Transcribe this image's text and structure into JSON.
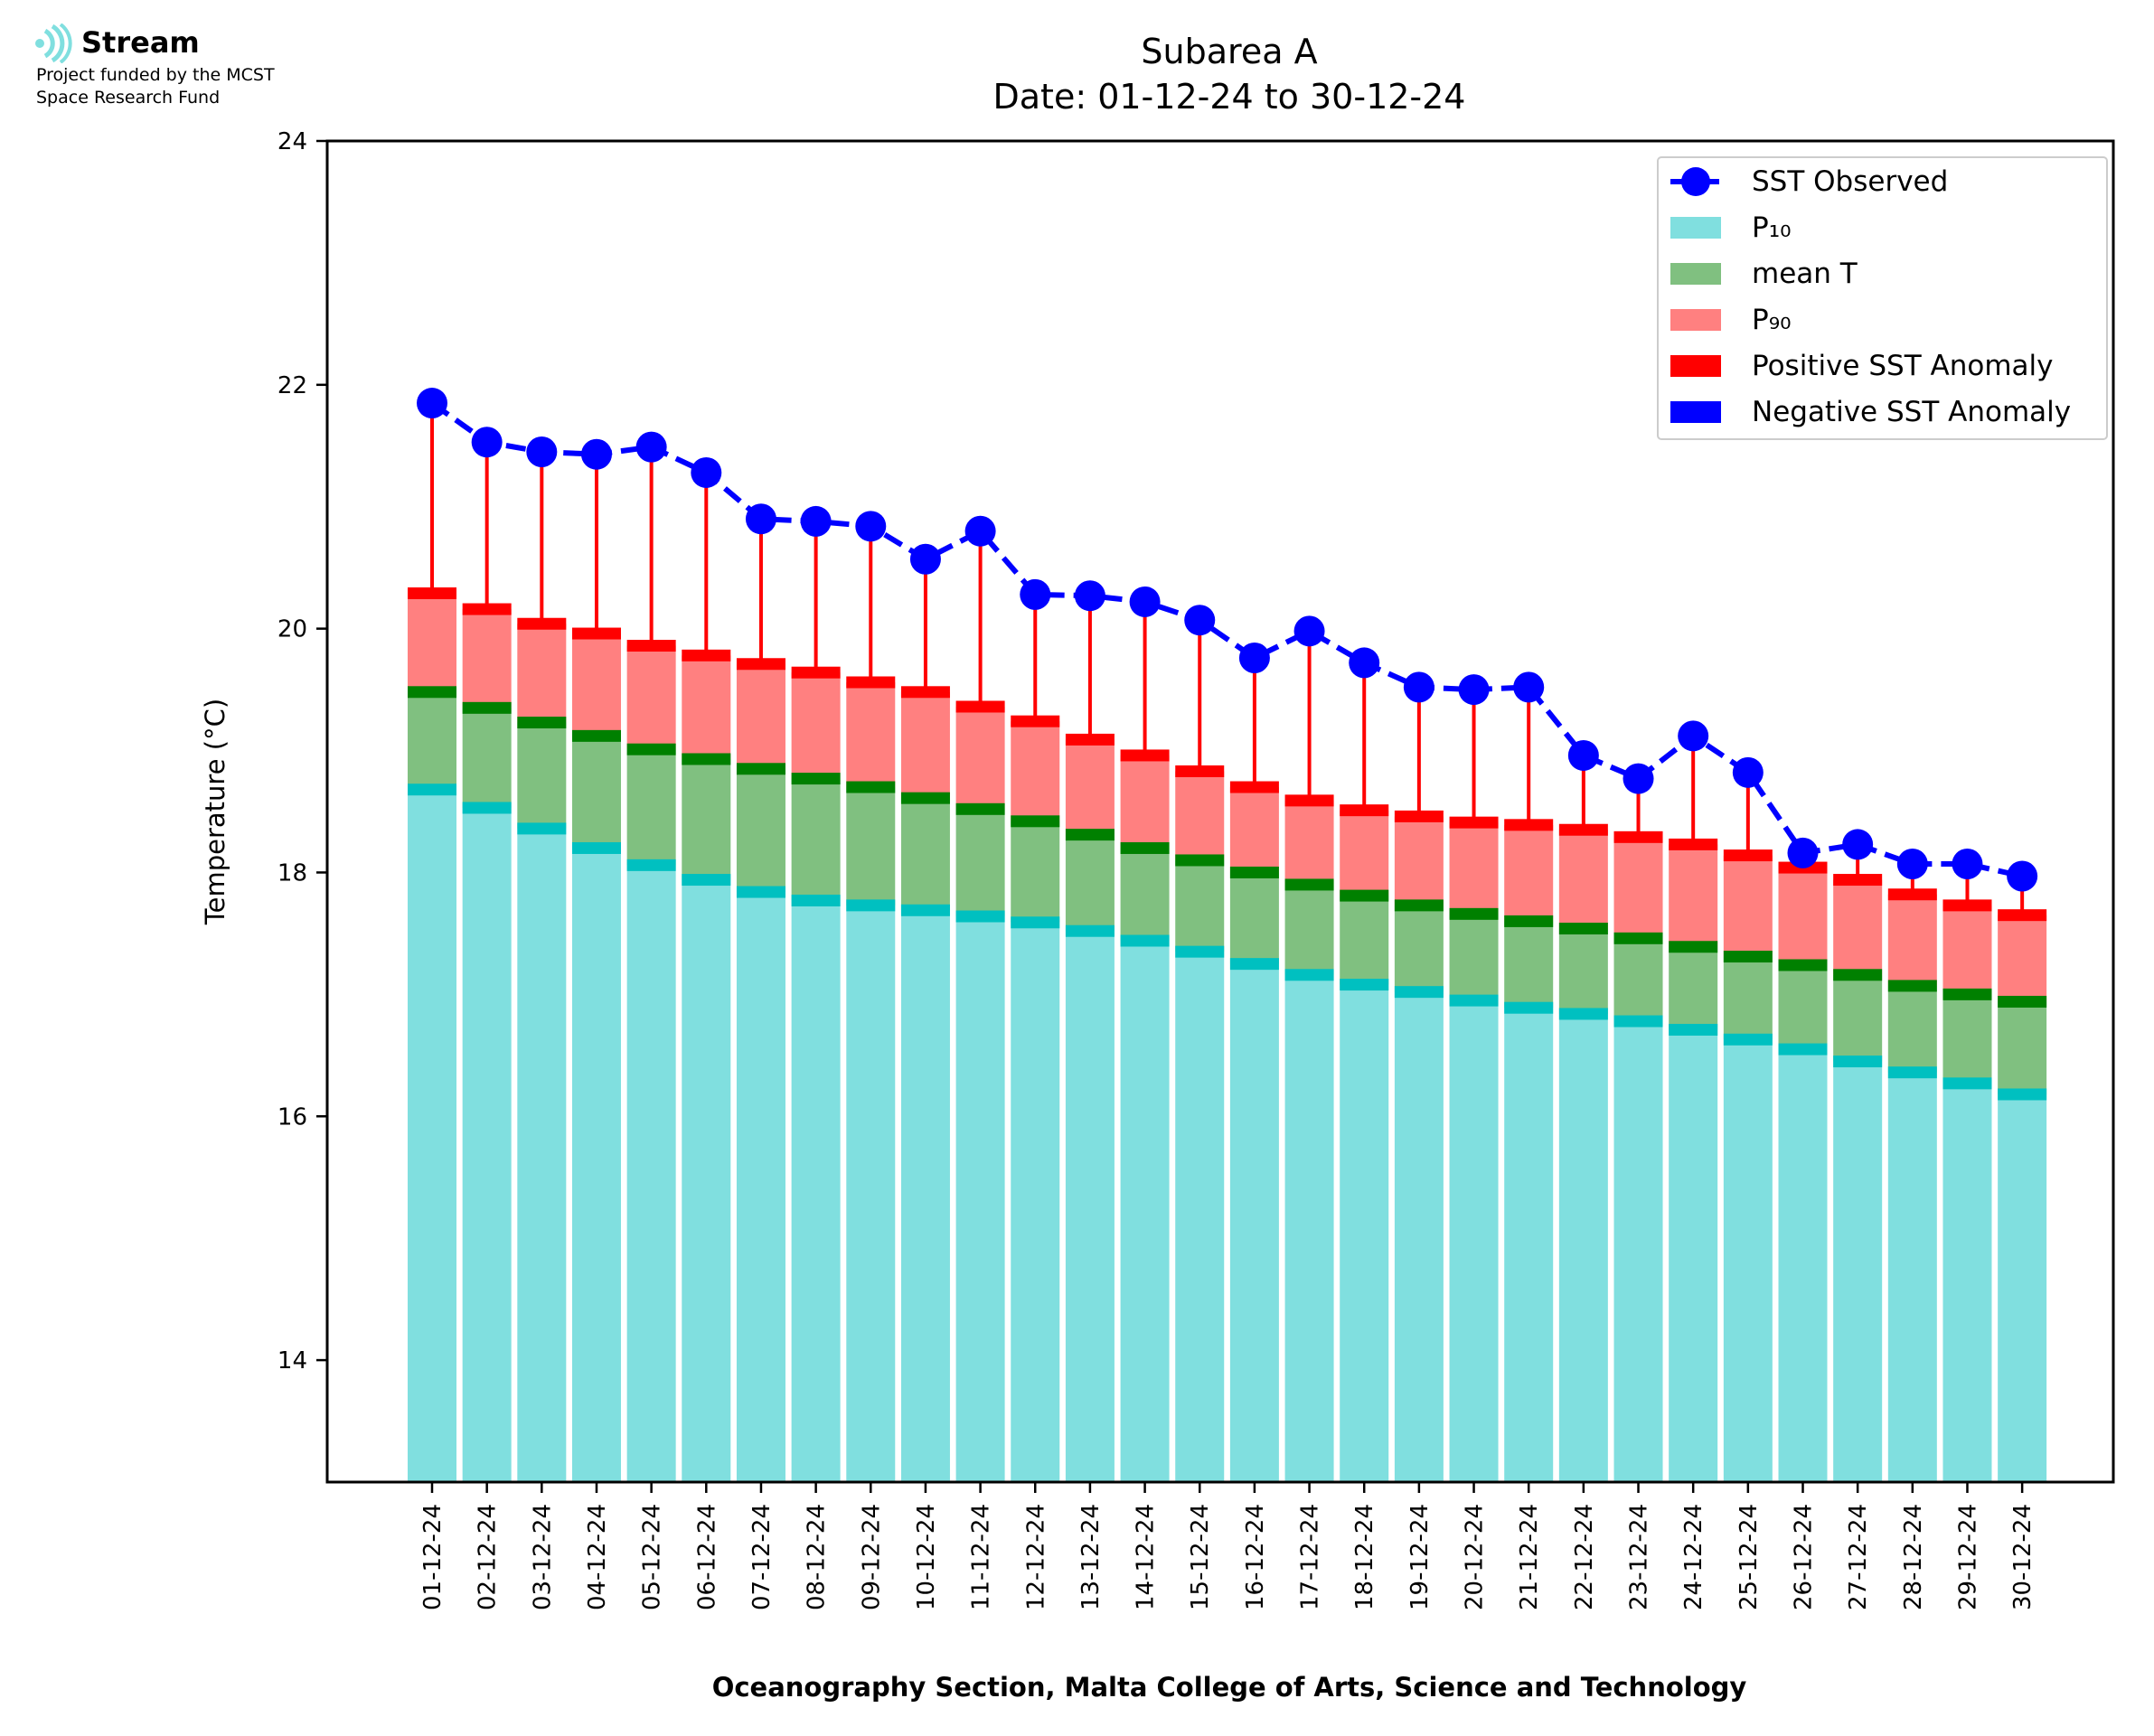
{
  "logo": {
    "name": "Stream",
    "line1": "Project funded by the MCST",
    "line2": "Space Research Fund"
  },
  "chart_data": {
    "type": "bar",
    "title": "Subarea A",
    "subtitle": "Date: 01-12-24 to 30-12-24",
    "xlabel": "Oceanography Section, Malta College of Arts, Science and Technology",
    "ylabel": "Temperature (°C)",
    "ylim": [
      13,
      24
    ],
    "yticks": [
      14,
      16,
      18,
      20,
      22,
      24
    ],
    "legend_position": "top-right",
    "categories": [
      "01-12-24",
      "02-12-24",
      "03-12-24",
      "04-12-24",
      "05-12-24",
      "06-12-24",
      "07-12-24",
      "08-12-24",
      "09-12-24",
      "10-12-24",
      "11-12-24",
      "12-12-24",
      "13-12-24",
      "14-12-24",
      "15-12-24",
      "16-12-24",
      "17-12-24",
      "18-12-24",
      "19-12-24",
      "20-12-24",
      "21-12-24",
      "22-12-24",
      "23-12-24",
      "24-12-24",
      "25-12-24",
      "26-12-24",
      "27-12-24",
      "28-12-24",
      "29-12-24",
      "30-12-24"
    ],
    "series": [
      {
        "name": "SST Observed",
        "color": "#0000ff",
        "kind": "line-marker",
        "values": [
          21.85,
          21.53,
          21.45,
          21.43,
          21.49,
          21.28,
          20.9,
          20.88,
          20.84,
          20.57,
          20.8,
          20.28,
          20.27,
          20.22,
          20.07,
          19.76,
          19.98,
          19.72,
          19.52,
          19.5,
          19.52,
          18.96,
          18.77,
          19.12,
          18.82,
          18.16,
          18.23,
          18.07,
          18.07,
          17.97
        ]
      },
      {
        "name": "P₁₀",
        "color": "#80dfdf",
        "kind": "bar",
        "values": [
          18.68,
          18.53,
          18.36,
          18.2,
          18.06,
          17.94,
          17.84,
          17.77,
          17.73,
          17.69,
          17.64,
          17.59,
          17.52,
          17.44,
          17.35,
          17.25,
          17.16,
          17.08,
          17.02,
          16.95,
          16.89,
          16.84,
          16.78,
          16.71,
          16.63,
          16.55,
          16.45,
          16.36,
          16.27,
          16.18
        ]
      },
      {
        "name": "mean T",
        "color": "#80c080",
        "kind": "bar",
        "values": [
          19.48,
          19.35,
          19.23,
          19.12,
          19.01,
          18.93,
          18.85,
          18.77,
          18.7,
          18.61,
          18.52,
          18.42,
          18.31,
          18.2,
          18.1,
          18.0,
          17.9,
          17.81,
          17.73,
          17.66,
          17.6,
          17.54,
          17.46,
          17.39,
          17.31,
          17.24,
          17.16,
          17.07,
          17.0,
          16.94
        ]
      },
      {
        "name": "P₉₀",
        "color": "#ff8080",
        "kind": "bar",
        "values": [
          20.29,
          20.16,
          20.04,
          19.96,
          19.86,
          19.78,
          19.71,
          19.64,
          19.56,
          19.48,
          19.36,
          19.24,
          19.09,
          18.96,
          18.83,
          18.7,
          18.59,
          18.51,
          18.46,
          18.41,
          18.39,
          18.35,
          18.29,
          18.23,
          18.14,
          18.04,
          17.94,
          17.82,
          17.73,
          17.65
        ]
      }
    ],
    "anomaly_legend": [
      {
        "name": "Positive SST Anomaly",
        "color": "#ff0000"
      },
      {
        "name": "Negative SST Anomaly",
        "color": "#0000ff"
      }
    ],
    "colors": {
      "p10_cap": "#00c0c0",
      "mean_cap": "#008000",
      "p90_cap": "#ff0000",
      "anomaly_positive": "#ff0000",
      "anomaly_negative": "#0000ff",
      "observed": "#0000ff"
    }
  }
}
